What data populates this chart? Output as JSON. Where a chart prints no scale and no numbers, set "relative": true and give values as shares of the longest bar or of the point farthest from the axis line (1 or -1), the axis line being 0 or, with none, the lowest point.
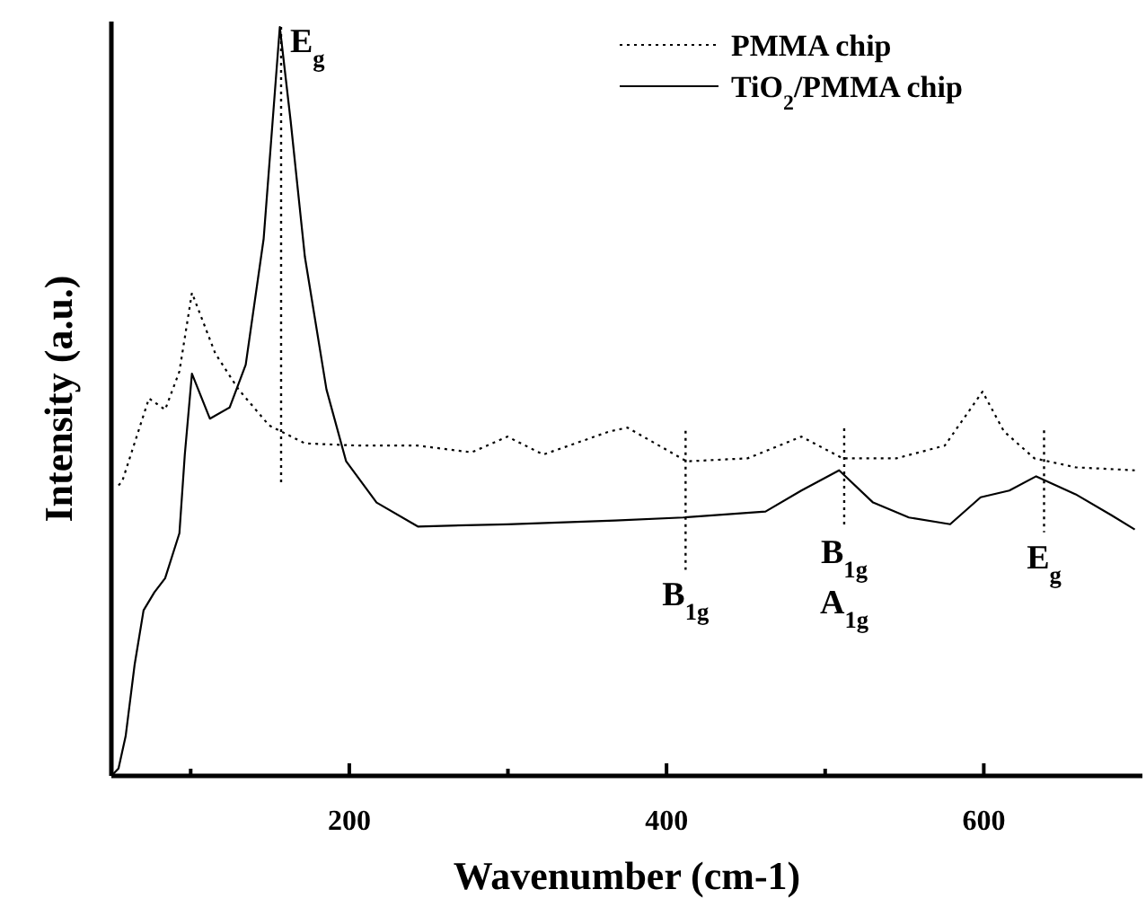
{
  "chart_data": {
    "type": "line",
    "relative": true,
    "xlabel": "Wavenumber (cm-1)",
    "ylabel": "Intensity (a.u.)",
    "xlim": [
      50,
      700
    ],
    "xticks": [
      {
        "value": 100,
        "label": null
      },
      200,
      {
        "value": 300,
        "label": null
      },
      400,
      {
        "value": 500,
        "label": null
      },
      600
    ],
    "legend": "top right",
    "marker": "none",
    "grid": false,
    "series": [
      {
        "name": "PMMA chip",
        "color": "#000000",
        "line_style": "dotted",
        "x": [
          54.5,
          56.8,
          73.7,
          83.9,
          92.9,
          100.8,
          115.5,
          130.2,
          149.4,
          172,
          205.9,
          243.2,
          277.1,
          299.7,
          322.3,
          364.1,
          375.4,
          412.7,
          451.1,
          485,
          511,
          544.9,
          575.4,
          599.2,
          612.7,
          631.9,
          657.9,
          695.2
        ],
        "values": [
          0.388,
          0.393,
          0.504,
          0.489,
          0.54,
          0.645,
          0.564,
          0.516,
          0.468,
          0.444,
          0.441,
          0.441,
          0.432,
          0.453,
          0.429,
          0.46,
          0.465,
          0.42,
          0.424,
          0.453,
          0.424,
          0.424,
          0.441,
          0.513,
          0.46,
          0.424,
          0.412,
          0.408
        ]
      },
      {
        "name": "TiO$_{2}$/PMMA chip",
        "color": "#000000",
        "line_style": "solid",
        "x": [
          50,
          54.5,
          59,
          64.7,
          70.3,
          77.1,
          83.9,
          92.9,
          96.3,
          100.8,
          112.1,
          124.6,
          134.7,
          146,
          151.7,
          156.2,
          163,
          172,
          185.6,
          198,
          217.2,
          243.2,
          299.7,
          367.5,
          410.5,
          462.4,
          485,
          508.8,
          530.2,
          552.8,
          578.8,
          598,
          616.1,
          633,
          657.9,
          680.5,
          695.2
        ],
        "values": [
          0,
          0.01,
          0.053,
          0.149,
          0.221,
          0.245,
          0.264,
          0.324,
          0.429,
          0.537,
          0.477,
          0.492,
          0.549,
          0.717,
          0.875,
          1,
          0.875,
          0.693,
          0.516,
          0.42,
          0.365,
          0.333,
          0.336,
          0.341,
          0.345,
          0.353,
          0.381,
          0.408,
          0.365,
          0.345,
          0.336,
          0.372,
          0.381,
          0.4,
          0.376,
          0.348,
          0.329
        ]
      }
    ],
    "ref_lines": [
      {
        "axis": "x",
        "value": 157,
        "line_style": "dotted",
        "label": "E$_{g}$"
      },
      {
        "axis": "x",
        "value": 412,
        "line_style": "dotted",
        "label": "B$_{1g}$"
      },
      {
        "axis": "x",
        "value": 512,
        "line_style": "dotted",
        "label": "B$_{1g}$\nA$_{1g}$"
      },
      {
        "axis": "x",
        "value": 638,
        "line_style": "dotted",
        "label": "E$_{g}$"
      }
    ]
  }
}
